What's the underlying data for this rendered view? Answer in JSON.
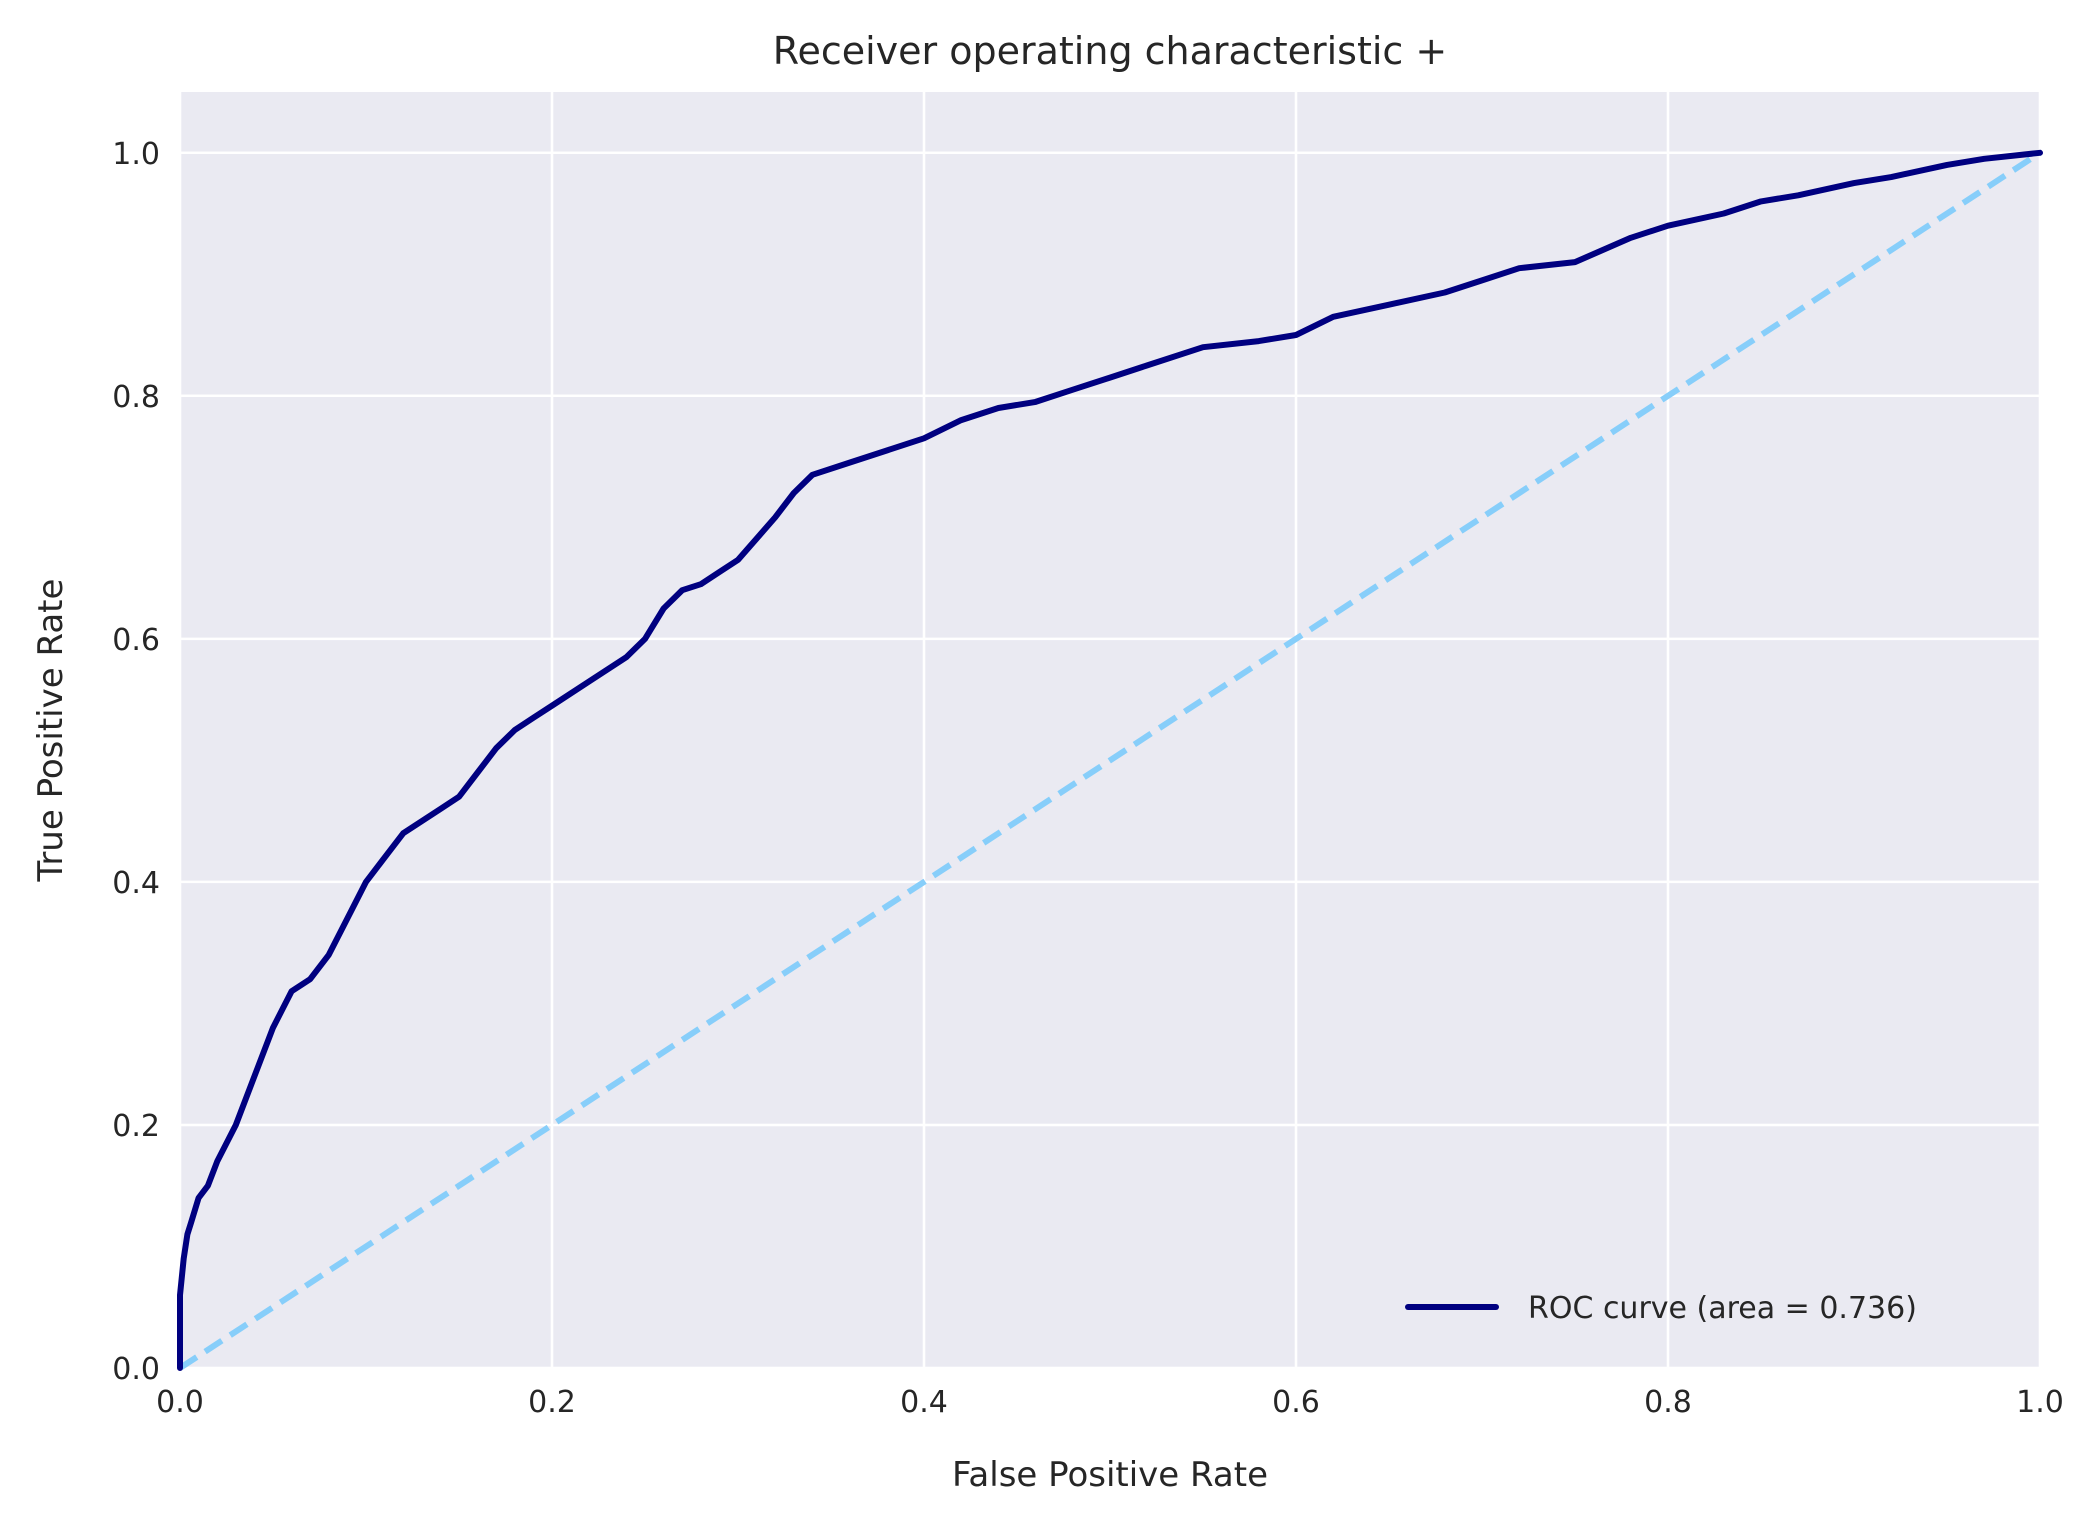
{
  "chart_data": {
    "type": "line",
    "title": "Receiver operating characteristic +",
    "xlabel": "False Positive Rate",
    "ylabel": "True Positive Rate",
    "xlim": [
      0.0,
      1.0
    ],
    "ylim": [
      0.0,
      1.05
    ],
    "x_ticks": [
      {
        "value": 0.0,
        "label": "0.0"
      },
      {
        "value": 0.2,
        "label": "0.2"
      },
      {
        "value": 0.4,
        "label": "0.4"
      },
      {
        "value": 0.6,
        "label": "0.6"
      },
      {
        "value": 0.8,
        "label": "0.8"
      },
      {
        "value": 1.0,
        "label": "1.0"
      }
    ],
    "y_ticks": [
      {
        "value": 0.0,
        "label": "0.0"
      },
      {
        "value": 0.2,
        "label": "0.2"
      },
      {
        "value": 0.4,
        "label": "0.4"
      },
      {
        "value": 0.6,
        "label": "0.6"
      },
      {
        "value": 0.8,
        "label": "0.8"
      },
      {
        "value": 1.0,
        "label": "1.0"
      }
    ],
    "grid": true,
    "legend": {
      "placement": "lower-right",
      "entries": [
        "ROC curve (area = 0.736)"
      ]
    },
    "series": [
      {
        "name": "ROC curve (area = 0.736)",
        "color": "#000080",
        "style": "solid",
        "x": [
          0.0,
          0.0,
          0.002,
          0.004,
          0.006,
          0.01,
          0.015,
          0.02,
          0.03,
          0.04,
          0.05,
          0.06,
          0.07,
          0.08,
          0.09,
          0.1,
          0.11,
          0.12,
          0.13,
          0.14,
          0.15,
          0.16,
          0.17,
          0.18,
          0.19,
          0.2,
          0.22,
          0.24,
          0.25,
          0.26,
          0.27,
          0.28,
          0.29,
          0.3,
          0.32,
          0.33,
          0.34,
          0.36,
          0.38,
          0.4,
          0.42,
          0.44,
          0.46,
          0.48,
          0.5,
          0.52,
          0.55,
          0.58,
          0.6,
          0.62,
          0.65,
          0.68,
          0.7,
          0.72,
          0.75,
          0.78,
          0.8,
          0.83,
          0.85,
          0.87,
          0.9,
          0.92,
          0.95,
          0.97,
          1.0
        ],
        "y": [
          0.0,
          0.06,
          0.09,
          0.11,
          0.12,
          0.14,
          0.15,
          0.17,
          0.2,
          0.24,
          0.28,
          0.31,
          0.32,
          0.34,
          0.37,
          0.4,
          0.42,
          0.44,
          0.45,
          0.46,
          0.47,
          0.49,
          0.51,
          0.525,
          0.535,
          0.545,
          0.565,
          0.585,
          0.6,
          0.625,
          0.64,
          0.645,
          0.655,
          0.665,
          0.7,
          0.72,
          0.735,
          0.745,
          0.755,
          0.765,
          0.78,
          0.79,
          0.795,
          0.805,
          0.815,
          0.825,
          0.84,
          0.845,
          0.85,
          0.865,
          0.875,
          0.885,
          0.895,
          0.905,
          0.91,
          0.93,
          0.94,
          0.95,
          0.96,
          0.965,
          0.975,
          0.98,
          0.99,
          0.995,
          1.0
        ]
      },
      {
        "name": "",
        "color": "#87CEFA",
        "style": "dashed",
        "x": [
          0.0,
          1.0
        ],
        "y": [
          0.0,
          1.0
        ]
      }
    ]
  }
}
